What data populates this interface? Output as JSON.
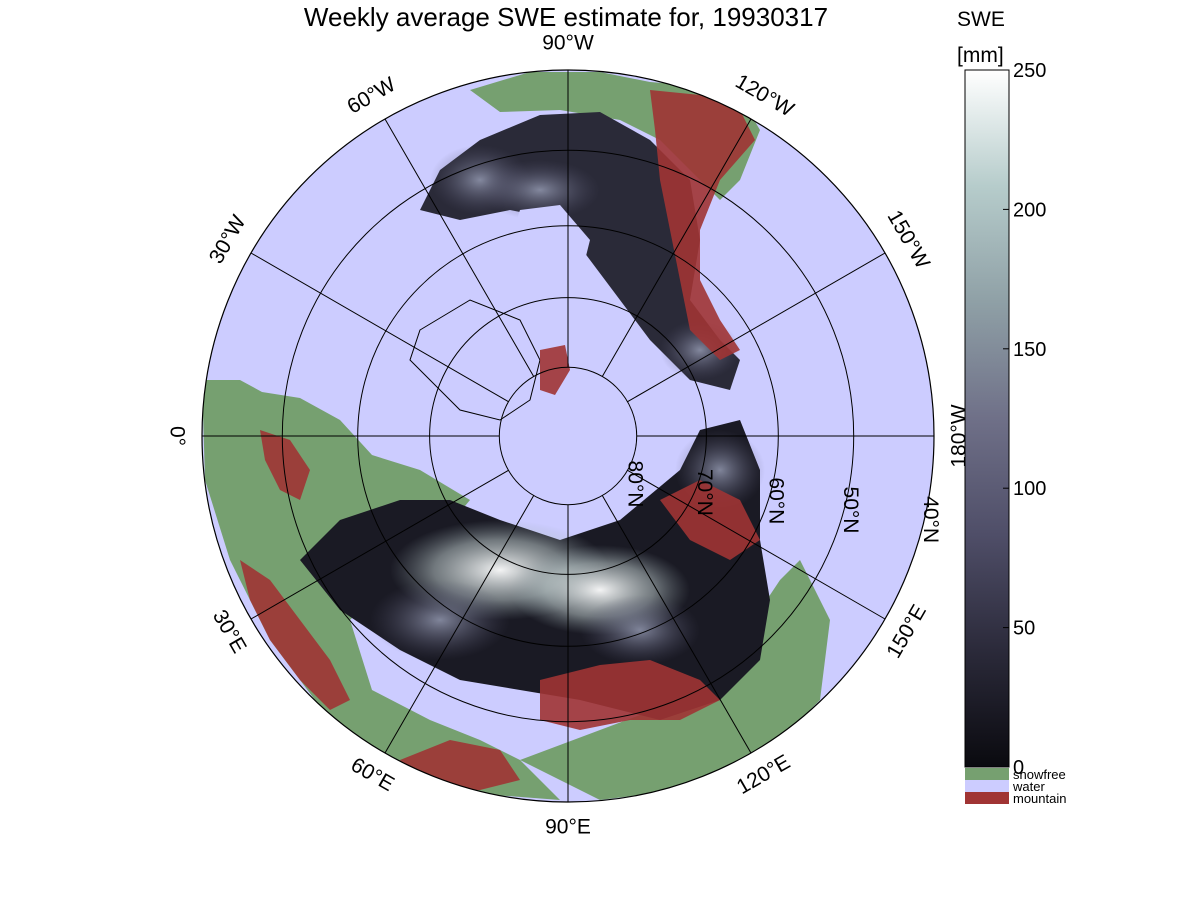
{
  "title": "Weekly average SWE estimate for, 19930317",
  "colorbar": {
    "title_line1": "SWE",
    "title_line2": "[mm]",
    "min": 0,
    "max": 250,
    "ticks": [
      0,
      50,
      100,
      150,
      200,
      250
    ],
    "gradient_colors": [
      "#0a0a0f",
      "#2b2a3a",
      "#4f4e68",
      "#6f7088",
      "#8fa0a6",
      "#b6cccb",
      "#ffffff"
    ],
    "categories": [
      {
        "label": "snowfree",
        "color": "#76a070"
      },
      {
        "label": "water",
        "color": "#ccccff"
      },
      {
        "label": "mountain",
        "color": "#a03434"
      }
    ]
  },
  "map": {
    "projection": "north polar stereographic",
    "ocean_color": "#ccccff",
    "land_color": "#76a070",
    "mountain_color": "#a03434",
    "latitude_circles": [
      {
        "lat": 80,
        "label": "80°N"
      },
      {
        "lat": 70,
        "label": "70°N"
      },
      {
        "lat": 60,
        "label": "60°N"
      },
      {
        "lat": 50,
        "label": "50°N"
      },
      {
        "lat": 40,
        "label": "40°N"
      }
    ],
    "longitude_lines": [
      {
        "label": "0°"
      },
      {
        "label": "30°W"
      },
      {
        "label": "60°W"
      },
      {
        "label": "90°W"
      },
      {
        "label": "120°W"
      },
      {
        "label": "150°W"
      },
      {
        "label": "180°W"
      },
      {
        "label": "150°E"
      },
      {
        "label": "120°E"
      },
      {
        "label": "90°E"
      },
      {
        "label": "60°E"
      },
      {
        "label": "30°E"
      }
    ]
  }
}
